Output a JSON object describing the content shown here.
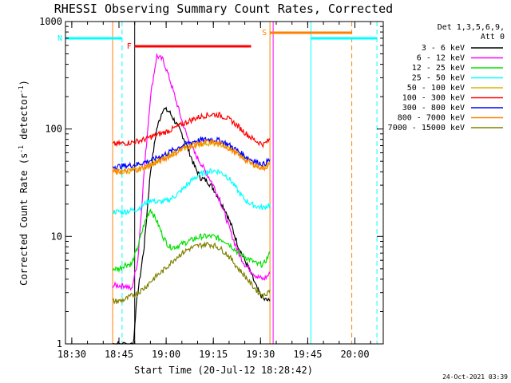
{
  "chart_data": {
    "type": "line",
    "title": "RHESSI Observing Summary Count Rates, Corrected",
    "xlabel": "Start Time (20-Jul-12 18:28:42)",
    "ylabel": "Corrected Count Rate (s⁻¹ detector⁻¹)",
    "ylabel_parts": [
      "Corrected Count Rate (s",
      "-1",
      " detector",
      "-1",
      ")"
    ],
    "y_scale": "log",
    "ylim": [
      1,
      1000
    ],
    "xlim": [
      "18:28",
      "20:09"
    ],
    "x_ticks": [
      "18:30",
      "18:45",
      "19:00",
      "19:15",
      "19:30",
      "19:45",
      "20:00"
    ],
    "y_ticks": [
      "1",
      "10",
      "100",
      "1000"
    ],
    "legend_header": [
      "Det 1,3,5,6,9,",
      "Att 0"
    ],
    "legend_position": "right",
    "footer": "24-Oct-2021 03:39",
    "series": [
      {
        "name": "3 - 6 keV",
        "color": "#000000",
        "points": [
          [
            "18:43",
            0
          ],
          [
            "18:45",
            0
          ],
          [
            "18:49",
            0
          ],
          [
            "18:51",
            3
          ],
          [
            "18:53",
            8
          ],
          [
            "18:55",
            40
          ],
          [
            "18:57",
            100
          ],
          [
            "18:59",
            155
          ],
          [
            "19:01",
            145
          ],
          [
            "19:03",
            115
          ],
          [
            "19:05",
            90
          ],
          [
            "19:07",
            65
          ],
          [
            "19:09",
            45
          ],
          [
            "19:11",
            35
          ],
          [
            "19:13",
            33
          ],
          [
            "19:15",
            28
          ],
          [
            "19:17",
            22
          ],
          [
            "19:19",
            17
          ],
          [
            "19:21",
            12
          ],
          [
            "19:23",
            8
          ],
          [
            "19:25",
            6
          ],
          [
            "19:27",
            4.5
          ],
          [
            "19:29",
            3.2
          ],
          [
            "19:31",
            2.6
          ],
          [
            "19:33",
            2.5
          ]
        ]
      },
      {
        "name": "6 - 12 keV",
        "color": "#ff00ff",
        "points": [
          [
            "18:43",
            3.5
          ],
          [
            "18:45",
            3.5
          ],
          [
            "18:47",
            3.5
          ],
          [
            "18:49",
            3.2
          ],
          [
            "18:51",
            6
          ],
          [
            "18:53",
            40
          ],
          [
            "18:55",
            200
          ],
          [
            "18:57",
            480
          ],
          [
            "18:59",
            440
          ],
          [
            "19:01",
            300
          ],
          [
            "19:03",
            190
          ],
          [
            "19:05",
            120
          ],
          [
            "19:07",
            80
          ],
          [
            "19:09",
            60
          ],
          [
            "19:11",
            48
          ],
          [
            "19:13",
            38
          ],
          [
            "19:15",
            30
          ],
          [
            "19:17",
            22
          ],
          [
            "19:19",
            15
          ],
          [
            "19:21",
            10
          ],
          [
            "19:23",
            7
          ],
          [
            "19:25",
            5.5
          ],
          [
            "19:27",
            4.8
          ],
          [
            "19:29",
            4.2
          ],
          [
            "19:31",
            4
          ],
          [
            "19:33",
            4.5
          ]
        ]
      },
      {
        "name": "12 - 25 keV",
        "color": "#00e000",
        "points": [
          [
            "18:43",
            5
          ],
          [
            "18:45",
            5
          ],
          [
            "18:47",
            5.5
          ],
          [
            "18:49",
            5.5
          ],
          [
            "18:51",
            8
          ],
          [
            "18:53",
            13
          ],
          [
            "18:55",
            18
          ],
          [
            "18:57",
            14
          ],
          [
            "18:59",
            10
          ],
          [
            "19:01",
            8
          ],
          [
            "19:03",
            8
          ],
          [
            "19:05",
            8.5
          ],
          [
            "19:07",
            9
          ],
          [
            "19:09",
            9.5
          ],
          [
            "19:11",
            10
          ],
          [
            "19:13",
            10
          ],
          [
            "19:15",
            10
          ],
          [
            "19:17",
            9.5
          ],
          [
            "19:19",
            9
          ],
          [
            "19:21",
            8
          ],
          [
            "19:23",
            7
          ],
          [
            "19:25",
            6.5
          ],
          [
            "19:27",
            6
          ],
          [
            "19:29",
            5.5
          ],
          [
            "19:31",
            5.5
          ],
          [
            "19:33",
            7
          ]
        ]
      },
      {
        "name": "25 - 50 keV",
        "color": "#00ffff",
        "points": [
          [
            "18:43",
            17
          ],
          [
            "18:45",
            17
          ],
          [
            "18:47",
            17
          ],
          [
            "18:49",
            17.5
          ],
          [
            "18:51",
            18
          ],
          [
            "18:53",
            20
          ],
          [
            "18:55",
            22
          ],
          [
            "18:57",
            21
          ],
          [
            "18:59",
            21
          ],
          [
            "19:01",
            22
          ],
          [
            "19:03",
            24
          ],
          [
            "19:05",
            27
          ],
          [
            "19:07",
            31
          ],
          [
            "19:09",
            35
          ],
          [
            "19:11",
            38
          ],
          [
            "19:13",
            40
          ],
          [
            "19:15",
            41
          ],
          [
            "19:17",
            40
          ],
          [
            "19:19",
            37
          ],
          [
            "19:21",
            32
          ],
          [
            "19:23",
            26
          ],
          [
            "19:25",
            22
          ],
          [
            "19:27",
            20
          ],
          [
            "19:29",
            19
          ],
          [
            "19:31",
            18.5
          ],
          [
            "19:33",
            20
          ]
        ]
      },
      {
        "name": "50 - 100 keV",
        "color": "#e0b000",
        "points": [
          [
            "18:43",
            40
          ],
          [
            "18:45",
            40
          ],
          [
            "18:47",
            40
          ],
          [
            "18:49",
            41
          ],
          [
            "18:51",
            42
          ],
          [
            "18:53",
            44
          ],
          [
            "18:55",
            47
          ],
          [
            "18:57",
            50
          ],
          [
            "18:59",
            53
          ],
          [
            "19:01",
            57
          ],
          [
            "19:03",
            61
          ],
          [
            "19:05",
            65
          ],
          [
            "19:07",
            68
          ],
          [
            "19:09",
            71
          ],
          [
            "19:11",
            73
          ],
          [
            "19:13",
            74
          ],
          [
            "19:15",
            74
          ],
          [
            "19:17",
            72
          ],
          [
            "19:19",
            69
          ],
          [
            "19:21",
            64
          ],
          [
            "19:23",
            58
          ],
          [
            "19:25",
            53
          ],
          [
            "19:27",
            49
          ],
          [
            "19:29",
            46
          ],
          [
            "19:31",
            44
          ],
          [
            "19:33",
            48
          ]
        ]
      },
      {
        "name": "100 - 300 keV",
        "color": "#ff0000",
        "points": [
          [
            "18:43",
            72
          ],
          [
            "18:45",
            73
          ],
          [
            "18:47",
            74
          ],
          [
            "18:49",
            75
          ],
          [
            "18:51",
            77
          ],
          [
            "18:53",
            80
          ],
          [
            "18:55",
            84
          ],
          [
            "18:57",
            88
          ],
          [
            "18:59",
            92
          ],
          [
            "19:01",
            97
          ],
          [
            "19:03",
            103
          ],
          [
            "19:05",
            110
          ],
          [
            "19:07",
            118
          ],
          [
            "19:09",
            125
          ],
          [
            "19:11",
            131
          ],
          [
            "19:13",
            135
          ],
          [
            "19:15",
            137
          ],
          [
            "19:17",
            135
          ],
          [
            "19:19",
            128
          ],
          [
            "19:21",
            118
          ],
          [
            "19:23",
            105
          ],
          [
            "19:25",
            93
          ],
          [
            "19:27",
            83
          ],
          [
            "19:29",
            76
          ],
          [
            "19:31",
            72
          ],
          [
            "19:33",
            80
          ]
        ]
      },
      {
        "name": "300 - 800 keV",
        "color": "#0000ff",
        "points": [
          [
            "18:43",
            45
          ],
          [
            "18:45",
            45
          ],
          [
            "18:47",
            45.5
          ],
          [
            "18:49",
            46
          ],
          [
            "18:51",
            47
          ],
          [
            "18:53",
            49
          ],
          [
            "18:55",
            51
          ],
          [
            "18:57",
            54
          ],
          [
            "18:59",
            57
          ],
          [
            "19:01",
            61
          ],
          [
            "19:03",
            65
          ],
          [
            "19:05",
            70
          ],
          [
            "19:07",
            74
          ],
          [
            "19:09",
            77
          ],
          [
            "19:11",
            79
          ],
          [
            "19:13",
            80
          ],
          [
            "19:15",
            80
          ],
          [
            "19:17",
            78
          ],
          [
            "19:19",
            74
          ],
          [
            "19:21",
            68
          ],
          [
            "19:23",
            62
          ],
          [
            "19:25",
            56
          ],
          [
            "19:27",
            52
          ],
          [
            "19:29",
            49
          ],
          [
            "19:31",
            47
          ],
          [
            "19:33",
            52
          ]
        ]
      },
      {
        "name": "800 - 7000 keV",
        "color": "#ff8000",
        "points": [
          [
            "18:43",
            40
          ],
          [
            "18:45",
            40
          ],
          [
            "18:47",
            40.5
          ],
          [
            "18:49",
            41
          ],
          [
            "18:51",
            42
          ],
          [
            "18:53",
            44
          ],
          [
            "18:55",
            46
          ],
          [
            "18:57",
            49
          ],
          [
            "18:59",
            52
          ],
          [
            "19:01",
            56
          ],
          [
            "19:03",
            60
          ],
          [
            "19:05",
            65
          ],
          [
            "19:07",
            69
          ],
          [
            "19:09",
            72
          ],
          [
            "19:11",
            74
          ],
          [
            "19:13",
            75
          ],
          [
            "19:15",
            75
          ],
          [
            "19:17",
            73
          ],
          [
            "19:19",
            69
          ],
          [
            "19:21",
            63
          ],
          [
            "19:23",
            57
          ],
          [
            "19:25",
            52
          ],
          [
            "19:27",
            48
          ],
          [
            "19:29",
            45
          ],
          [
            "19:31",
            43
          ],
          [
            "19:33",
            47
          ]
        ]
      },
      {
        "name": "7000 - 15000 keV",
        "color": "#808000",
        "points": [
          [
            "18:43",
            2.5
          ],
          [
            "18:45",
            2.5
          ],
          [
            "18:47",
            2.6
          ],
          [
            "18:49",
            2.8
          ],
          [
            "18:51",
            3
          ],
          [
            "18:53",
            3.3
          ],
          [
            "18:55",
            3.8
          ],
          [
            "18:57",
            4.3
          ],
          [
            "18:59",
            4.8
          ],
          [
            "19:01",
            5.5
          ],
          [
            "19:03",
            6.3
          ],
          [
            "19:05",
            7
          ],
          [
            "19:07",
            7.6
          ],
          [
            "19:09",
            8
          ],
          [
            "19:11",
            8.3
          ],
          [
            "19:13",
            8.5
          ],
          [
            "19:15",
            8.3
          ],
          [
            "19:17",
            7.8
          ],
          [
            "19:19",
            7
          ],
          [
            "19:21",
            6
          ],
          [
            "19:23",
            5
          ],
          [
            "19:25",
            4.3
          ],
          [
            "19:27",
            3.6
          ],
          [
            "19:29",
            3.1
          ],
          [
            "19:31",
            2.8
          ],
          [
            "19:33",
            3.2
          ]
        ]
      }
    ],
    "flag_bars": [
      {
        "label": "N",
        "color": "#00ffff",
        "segments": [
          [
            "18:28",
            "18:46"
          ],
          [
            "19:46",
            "20:07"
          ]
        ]
      },
      {
        "label": "F",
        "color": "#ff0000",
        "segments": [
          [
            "18:50",
            "19:27"
          ]
        ]
      },
      {
        "label": "S",
        "color": "#ff8000",
        "segments": [
          [
            "19:33",
            "19:59"
          ]
        ]
      }
    ],
    "vertical_markers": [
      {
        "time": "18:28",
        "color": "#00ffff",
        "style": "solid"
      },
      {
        "time": "18:43",
        "color": "#ff8000",
        "style": "solid"
      },
      {
        "time": "18:46",
        "color": "#00ffff",
        "style": "dashed"
      },
      {
        "time": "18:50",
        "color": "#000000",
        "style": "solid"
      },
      {
        "time": "19:33",
        "color": "#ff8000",
        "style": "solid"
      },
      {
        "time": "19:34",
        "color": "#ff00ff",
        "style": "solid"
      },
      {
        "time": "19:46",
        "color": "#00ffff",
        "style": "solid"
      },
      {
        "time": "19:59",
        "color": "#ff8000",
        "style": "dashed"
      },
      {
        "time": "20:07",
        "color": "#00ffff",
        "style": "dashed"
      }
    ]
  }
}
